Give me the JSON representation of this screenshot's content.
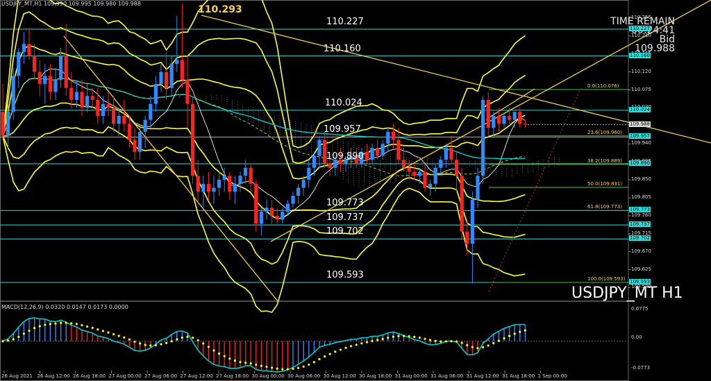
{
  "header": {
    "symbol_info": "USDJPY_MT,H1  109.990 109.995 109.980 109.988"
  },
  "macd": {
    "info": "MACD(12,26,9) 0.0320 0.0147 0.0173 0.0000",
    "axis_labels": [
      "0.0775",
      "0.00",
      "-0.0773"
    ]
  },
  "annotations": {
    "high_label": "110.293",
    "level_labels": [
      "110.227",
      "110.160",
      "110.024",
      "109.957",
      "109.890",
      "109.773",
      "109.737",
      "109.702",
      "109.593"
    ],
    "symbol_big": "USDJPY_MT H1"
  },
  "time_remain": {
    "title": "TIME REMAIN",
    "value": "00:24:41",
    "bid_label": "Bid",
    "bid_value": "109.988"
  },
  "price_axis": [
    "110.255",
    "110.210",
    "110.165",
    "110.120",
    "110.075",
    "110.030",
    "109.985",
    "109.940",
    "109.895",
    "109.850",
    "109.805",
    "109.760",
    "109.715",
    "109.670",
    "109.625",
    "109.580"
  ],
  "price_tags": [
    "110.227",
    "110.160",
    "110.024",
    "109.988",
    "109.957",
    "109.890",
    "109.773",
    "109.737",
    "109.702",
    "109.593"
  ],
  "fib_labels": [
    "0.0(110.076)",
    "23.6(109.960)",
    "38.2(109.889)",
    "50.0(109.831)",
    "61.8(109.773)",
    "100.0(109.593)"
  ],
  "time_axis": [
    "26 Aug 2021",
    "26 Aug 12:00",
    "26 Aug 18:00",
    "27 Aug 00:00",
    "27 Aug 06:00",
    "27 Aug 12:00",
    "27 Aug 18:00",
    "30 Aug 00:00",
    "30 Aug 06:00",
    "30 Aug 12:00",
    "30 Aug 18:00",
    "31 Aug 00:00",
    "31 Aug 06:00",
    "31 Aug 12:00",
    "31 Aug 18:00",
    "1 Sep 00:00"
  ],
  "colors": {
    "bull": "#2e8bff",
    "bear": "#ff2020",
    "bands": "#ffff33",
    "trend": "#f0d040",
    "levels": "#3ad6d6",
    "ma": "#00cccc",
    "signal": "#ffff00"
  },
  "chart_data": {
    "type": "candlestick",
    "symbol": "USDJPY_MT",
    "timeframe": "H1",
    "ylim": [
      109.56,
      110.3
    ],
    "candles": [
      [
        110.02,
        110.09,
        109.95,
        109.96
      ],
      [
        109.96,
        110.04,
        109.93,
        110.02
      ],
      [
        110.02,
        110.13,
        110.0,
        110.11
      ],
      [
        110.11,
        110.18,
        110.08,
        110.17
      ],
      [
        110.17,
        110.22,
        110.14,
        110.19
      ],
      [
        110.19,
        110.23,
        110.15,
        110.16
      ],
      [
        110.16,
        110.19,
        110.1,
        110.12
      ],
      [
        110.12,
        110.15,
        110.06,
        110.09
      ],
      [
        110.09,
        110.14,
        110.04,
        110.11
      ],
      [
        110.11,
        110.14,
        110.05,
        110.07
      ],
      [
        110.07,
        110.13,
        110.05,
        110.1
      ],
      [
        110.1,
        110.18,
        110.08,
        110.16
      ],
      [
        110.16,
        110.24,
        110.06,
        110.08
      ],
      [
        110.08,
        110.12,
        110.03,
        110.05
      ],
      [
        110.05,
        110.1,
        110.03,
        110.07
      ],
      [
        110.07,
        110.1,
        110.01,
        110.03
      ],
      [
        110.03,
        110.09,
        110.02,
        110.06
      ],
      [
        110.06,
        110.08,
        110.03,
        110.05
      ],
      [
        110.05,
        110.08,
        109.99,
        110.01
      ],
      [
        110.01,
        110.06,
        109.99,
        110.04
      ],
      [
        110.04,
        110.07,
        110.01,
        110.03
      ],
      [
        110.03,
        110.06,
        109.97,
        109.99
      ],
      [
        109.99,
        110.03,
        109.96,
        110.01
      ],
      [
        110.01,
        110.05,
        109.97,
        109.99
      ],
      [
        109.99,
        110.01,
        109.93,
        109.95
      ],
      [
        109.95,
        109.98,
        109.9,
        109.92
      ],
      [
        109.92,
        109.99,
        109.9,
        109.97
      ],
      [
        109.97,
        110.01,
        109.93,
        110.0
      ],
      [
        110.0,
        110.06,
        109.98,
        110.04
      ],
      [
        110.04,
        110.11,
        110.02,
        110.09
      ],
      [
        110.09,
        110.14,
        110.07,
        110.12
      ],
      [
        110.12,
        110.17,
        110.05,
        110.08
      ],
      [
        110.08,
        110.16,
        110.06,
        110.14
      ],
      [
        110.14,
        110.26,
        110.12,
        110.15
      ],
      [
        110.15,
        110.29,
        110.08,
        110.1
      ],
      [
        110.1,
        110.16,
        109.98,
        110.04
      ],
      [
        110.04,
        110.06,
        109.84,
        109.86
      ],
      [
        109.86,
        109.9,
        109.79,
        109.82
      ],
      [
        109.82,
        109.86,
        109.78,
        109.84
      ],
      [
        109.84,
        109.87,
        109.8,
        109.82
      ],
      [
        109.82,
        109.86,
        109.79,
        109.83
      ],
      [
        109.83,
        109.87,
        109.81,
        109.85
      ],
      [
        109.85,
        109.88,
        109.82,
        109.86
      ],
      [
        109.86,
        109.87,
        109.8,
        109.82
      ],
      [
        109.82,
        109.86,
        109.79,
        109.84
      ],
      [
        109.84,
        109.87,
        109.82,
        109.86
      ],
      [
        109.86,
        109.9,
        109.84,
        109.88
      ],
      [
        109.88,
        109.89,
        109.82,
        109.84
      ],
      [
        109.84,
        109.85,
        109.72,
        109.74
      ],
      [
        109.74,
        109.78,
        109.71,
        109.77
      ],
      [
        109.77,
        109.8,
        109.75,
        109.78
      ],
      [
        109.78,
        109.8,
        109.74,
        109.76
      ],
      [
        109.76,
        109.78,
        109.74,
        109.75
      ],
      [
        109.75,
        109.78,
        109.74,
        109.77
      ],
      [
        109.77,
        109.8,
        109.76,
        109.79
      ],
      [
        109.79,
        109.82,
        109.78,
        109.81
      ],
      [
        109.81,
        109.84,
        109.79,
        109.83
      ],
      [
        109.83,
        109.86,
        109.81,
        109.85
      ],
      [
        109.85,
        109.9,
        109.83,
        109.88
      ],
      [
        109.88,
        109.92,
        109.86,
        109.91
      ],
      [
        109.91,
        109.96,
        109.88,
        109.95
      ],
      [
        109.95,
        109.97,
        109.88,
        109.89
      ],
      [
        109.89,
        109.91,
        109.86,
        109.88
      ],
      [
        109.88,
        109.91,
        109.86,
        109.9
      ],
      [
        109.9,
        109.93,
        109.87,
        109.89
      ],
      [
        109.89,
        109.91,
        109.87,
        109.9
      ],
      [
        109.9,
        109.93,
        109.88,
        109.91
      ],
      [
        109.91,
        109.93,
        109.88,
        109.89
      ],
      [
        109.89,
        109.93,
        109.88,
        109.92
      ],
      [
        109.92,
        109.94,
        109.89,
        109.9
      ],
      [
        109.9,
        109.94,
        109.89,
        109.93
      ],
      [
        109.93,
        109.95,
        109.9,
        109.91
      ],
      [
        109.91,
        109.95,
        109.9,
        109.94
      ],
      [
        109.94,
        109.98,
        109.92,
        109.97
      ],
      [
        109.97,
        109.99,
        109.93,
        109.95
      ],
      [
        109.95,
        109.98,
        109.89,
        109.9
      ],
      [
        109.9,
        109.93,
        109.87,
        109.88
      ],
      [
        109.88,
        109.9,
        109.85,
        109.87
      ],
      [
        109.87,
        109.89,
        109.85,
        109.86
      ],
      [
        109.86,
        109.88,
        109.84,
        109.87
      ],
      [
        109.87,
        109.89,
        109.82,
        109.83
      ],
      [
        109.83,
        109.85,
        109.81,
        109.84
      ],
      [
        109.84,
        109.89,
        109.82,
        109.88
      ],
      [
        109.88,
        109.91,
        109.86,
        109.9
      ],
      [
        109.9,
        109.94,
        109.88,
        109.93
      ],
      [
        109.93,
        109.96,
        109.89,
        109.9
      ],
      [
        109.9,
        109.92,
        109.82,
        109.86
      ],
      [
        109.86,
        109.88,
        109.7,
        109.72
      ],
      [
        109.72,
        109.75,
        109.66,
        109.69
      ],
      [
        109.69,
        109.82,
        109.59,
        109.8
      ],
      [
        109.8,
        109.88,
        109.78,
        109.86
      ],
      [
        109.86,
        110.06,
        109.84,
        110.05
      ],
      [
        110.05,
        110.07,
        109.96,
        109.98
      ],
      [
        109.98,
        110.02,
        109.96,
        110.01
      ],
      [
        110.01,
        110.03,
        109.97,
        109.99
      ],
      [
        109.99,
        110.02,
        109.98,
        110.01
      ],
      [
        110.01,
        110.03,
        109.99,
        110.0
      ],
      [
        110.0,
        110.02,
        109.98,
        110.02
      ],
      [
        110.02,
        110.03,
        109.98,
        109.99
      ],
      [
        109.99,
        110.0,
        109.98,
        109.988
      ]
    ],
    "horizontal_levels": [
      110.227,
      110.16,
      110.024,
      109.957,
      109.89,
      109.773,
      109.737,
      109.702,
      109.593
    ],
    "fibonacci": {
      "high": 110.076,
      "low": 109.593,
      "levels": [
        [
          0.0,
          110.076
        ],
        [
          23.6,
          109.96
        ],
        [
          38.2,
          109.889
        ],
        [
          50.0,
          109.831
        ],
        [
          61.8,
          109.773
        ],
        [
          100.0,
          109.593
        ]
      ]
    },
    "macd": {
      "fast": 12,
      "slow": 26,
      "signal": 9,
      "ylim": [
        -0.0773,
        0.0775
      ]
    }
  }
}
